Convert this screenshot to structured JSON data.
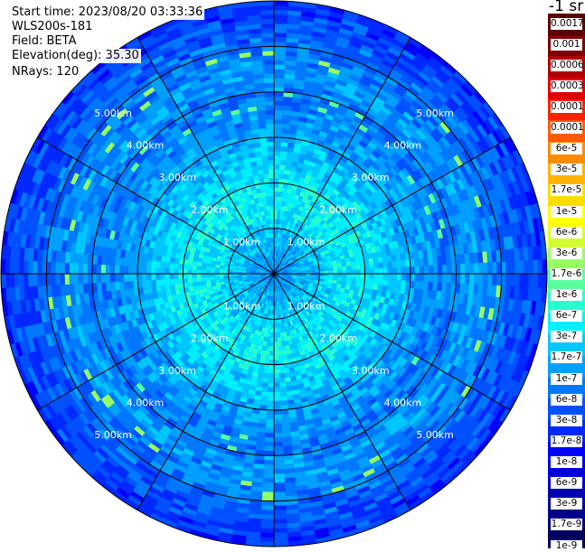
{
  "info": {
    "start_time": "Start time: 2023/08/20 03:33:36",
    "device": "WLS200s-181",
    "field": "Field: BETA",
    "elevation": "Elevation(deg): 35.30",
    "nrays": "NRays: 120"
  },
  "chart_data": {
    "type": "heatmap",
    "subtype": "polar-ppi",
    "field": "BETA",
    "unit": "-1 sr",
    "ring_labels": [
      "1.00km",
      "2.00km",
      "3.00km",
      "4.00km",
      "5.00km"
    ],
    "ring_values_km": [
      1,
      2,
      3,
      4,
      5
    ],
    "max_range_km": 6.0,
    "radial_lines": 12,
    "nrays": 120,
    "colorbar": {
      "unit_label": "-1 sr",
      "levels": [
        "0.0017",
        "0.001",
        "0.0006",
        "0.0003",
        "0.00017",
        "0.0001",
        "6e-5",
        "3e-5",
        "1.7e-5",
        "1e-5",
        "6e-6",
        "3e-6",
        "1.7e-6",
        "1e-6",
        "6e-7",
        "3e-7",
        "1.7e-7",
        "1e-7",
        "6e-8",
        "3e-8",
        "1.7e-8",
        "1e-8",
        "6e-9",
        "3e-9",
        "1.7e-9",
        "1e-9"
      ],
      "colors": [
        "#5a0000",
        "#800000",
        "#b00000",
        "#e00000",
        "#ff2000",
        "#ff5a00",
        "#ff8c00",
        "#ffb400",
        "#ffdc00",
        "#ffff00",
        "#d2ff2d",
        "#96ff64",
        "#5aff9c",
        "#28ffd0",
        "#00f0ff",
        "#00c8ff",
        "#00a0ff",
        "#0078ff",
        "#0050ff",
        "#0028ff",
        "#0000ff",
        "#0000d8",
        "#0000b0",
        "#000088",
        "#000060"
      ]
    },
    "field_levels": [
      {
        "r_km": 0.2,
        "idx": 16
      },
      {
        "r_km": 0.9,
        "idx": 15
      },
      {
        "r_km": 1.4,
        "idx": 14
      },
      {
        "r_km": 2.0,
        "idx": 14
      },
      {
        "r_km": 2.6,
        "idx": 15
      },
      {
        "r_km": 3.2,
        "idx": 16
      },
      {
        "r_km": 3.9,
        "idx": 17
      },
      {
        "r_km": 4.3,
        "idx": 16
      },
      {
        "r_km": 4.8,
        "idx": 17
      },
      {
        "r_km": 5.5,
        "idx": 18
      },
      {
        "r_km": 6.0,
        "idx": 19
      }
    ]
  }
}
